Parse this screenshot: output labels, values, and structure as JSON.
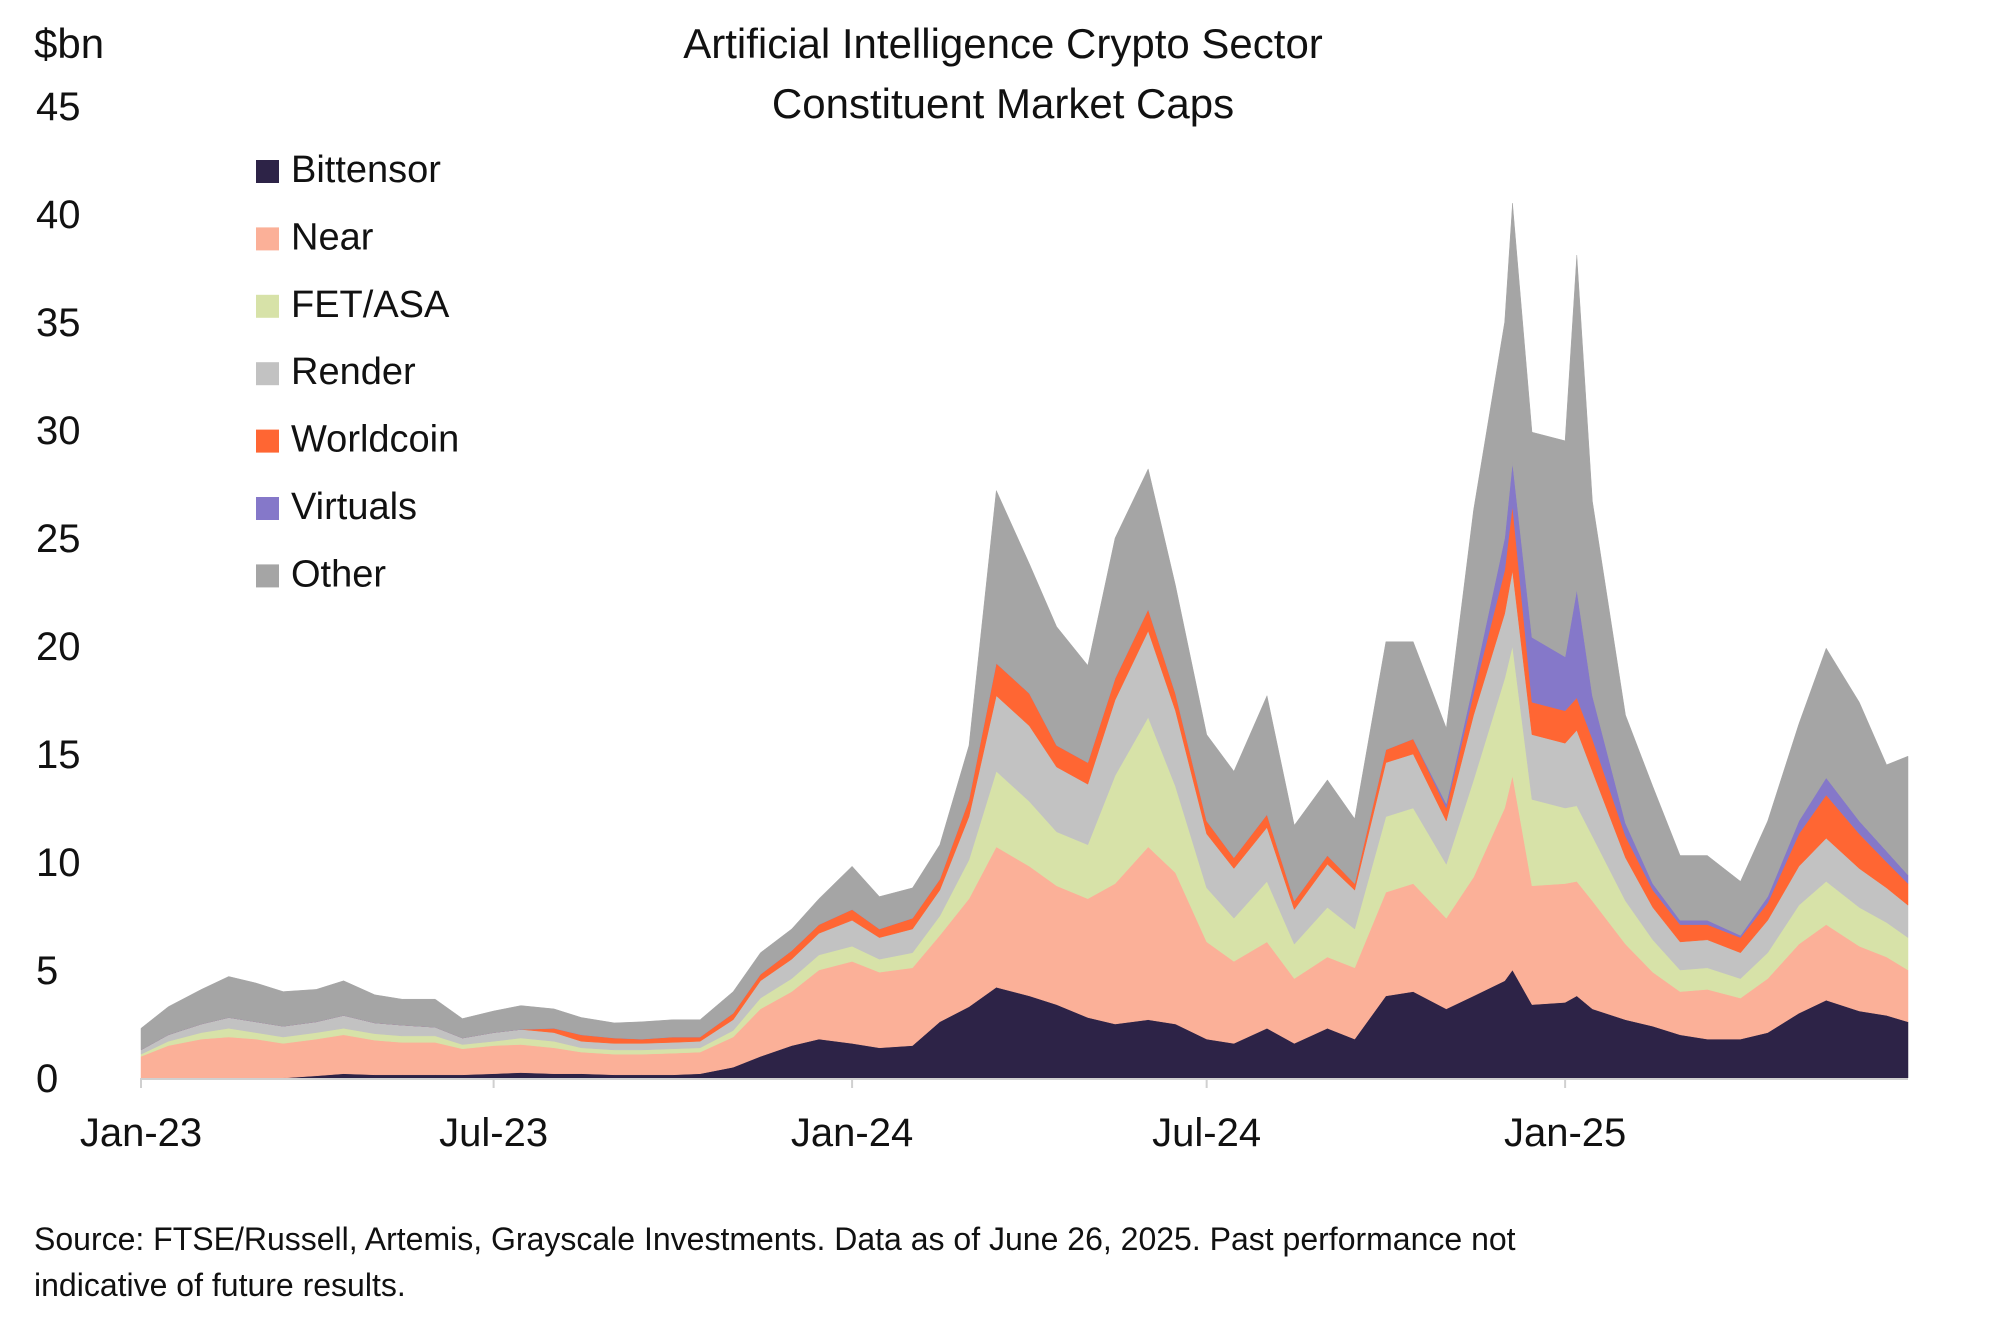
{
  "chart_data": {
    "type": "area",
    "stacked": true,
    "title": "Artificial Intelligence Crypto Sector",
    "subtitle": "Constituent Market Caps",
    "ylabel": "$bn",
    "xlabel": "",
    "ylim": [
      0,
      45
    ],
    "yticks": [
      0,
      5,
      10,
      15,
      20,
      25,
      30,
      35,
      40,
      45
    ],
    "xticks": [
      {
        "date": "2023-01-01",
        "label": "Jan-23"
      },
      {
        "date": "2023-07-01",
        "label": "Jul-23"
      },
      {
        "date": "2024-01-01",
        "label": "Jan-24"
      },
      {
        "date": "2024-07-01",
        "label": "Jul-24"
      },
      {
        "date": "2025-01-01",
        "label": "Jan-25"
      }
    ],
    "xlim": [
      "2023-01-01",
      "2025-06-26"
    ],
    "grid": false,
    "legend_position": "top-left",
    "x": [
      "2023-01-01",
      "2023-01-15",
      "2023-02-01",
      "2023-02-15",
      "2023-03-01",
      "2023-03-15",
      "2023-04-01",
      "2023-04-15",
      "2023-05-01",
      "2023-05-15",
      "2023-06-01",
      "2023-06-15",
      "2023-07-01",
      "2023-07-15",
      "2023-08-01",
      "2023-08-15",
      "2023-09-01",
      "2023-09-15",
      "2023-10-01",
      "2023-10-15",
      "2023-11-01",
      "2023-11-15",
      "2023-12-01",
      "2023-12-15",
      "2024-01-01",
      "2024-01-15",
      "2024-02-01",
      "2024-02-15",
      "2024-03-01",
      "2024-03-15",
      "2024-04-01",
      "2024-04-15",
      "2024-05-01",
      "2024-05-15",
      "2024-06-01",
      "2024-06-15",
      "2024-07-01",
      "2024-07-15",
      "2024-08-01",
      "2024-08-15",
      "2024-09-01",
      "2024-09-15",
      "2024-10-01",
      "2024-10-15",
      "2024-11-01",
      "2024-11-15",
      "2024-12-01",
      "2024-12-05",
      "2024-12-15",
      "2025-01-01",
      "2025-01-07",
      "2025-01-15",
      "2025-02-01",
      "2025-02-15",
      "2025-03-01",
      "2025-03-15",
      "2025-04-01",
      "2025-04-15",
      "2025-05-01",
      "2025-05-15",
      "2025-06-01",
      "2025-06-15",
      "2025-06-26"
    ],
    "series": [
      {
        "name": "Bittensor",
        "color": "#2d2347",
        "values": [
          0,
          0,
          0,
          0,
          0,
          0,
          0.1,
          0.2,
          0.15,
          0.15,
          0.15,
          0.15,
          0.2,
          0.25,
          0.2,
          0.2,
          0.15,
          0.15,
          0.15,
          0.2,
          0.5,
          1.0,
          1.5,
          1.8,
          1.6,
          1.4,
          1.5,
          2.6,
          3.3,
          4.2,
          3.8,
          3.4,
          2.8,
          2.5,
          2.7,
          2.5,
          1.8,
          1.6,
          2.3,
          1.6,
          2.3,
          1.8,
          3.8,
          4.0,
          3.2,
          3.8,
          4.5,
          5.0,
          3.4,
          3.5,
          3.8,
          3.2,
          2.7,
          2.4,
          2.0,
          1.8,
          1.8,
          2.1,
          3.0,
          3.6,
          3.1,
          2.9,
          2.6
        ]
      },
      {
        "name": "Near",
        "color": "#fbb098",
        "values": [
          1.0,
          1.5,
          1.8,
          1.9,
          1.8,
          1.6,
          1.7,
          1.8,
          1.6,
          1.5,
          1.5,
          1.2,
          1.3,
          1.3,
          1.2,
          1.0,
          0.95,
          0.95,
          1.0,
          1.0,
          1.4,
          2.2,
          2.5,
          3.2,
          3.8,
          3.5,
          3.6,
          4.0,
          5.0,
          6.5,
          6.0,
          5.5,
          5.5,
          6.5,
          8.0,
          7.0,
          4.5,
          3.8,
          4.0,
          3.0,
          3.3,
          3.3,
          4.8,
          5.0,
          4.2,
          5.5,
          8.0,
          9.0,
          5.5,
          5.5,
          5.3,
          5.0,
          3.5,
          2.5,
          2.0,
          2.3,
          1.9,
          2.5,
          3.2,
          3.5,
          3.0,
          2.7,
          2.4
        ]
      },
      {
        "name": "FET/ASA",
        "color": "#d7e2a8",
        "values": [
          0.1,
          0.2,
          0.3,
          0.4,
          0.3,
          0.3,
          0.3,
          0.3,
          0.3,
          0.3,
          0.3,
          0.2,
          0.2,
          0.3,
          0.3,
          0.2,
          0.2,
          0.2,
          0.2,
          0.2,
          0.3,
          0.5,
          0.6,
          0.7,
          0.7,
          0.6,
          0.7,
          0.9,
          1.8,
          3.5,
          3.0,
          2.5,
          2.5,
          5.0,
          6.0,
          4.0,
          2.5,
          2.0,
          2.8,
          1.6,
          2.3,
          1.8,
          3.5,
          3.5,
          2.5,
          4.5,
          6.0,
          6.0,
          4.0,
          3.5,
          3.5,
          3.0,
          2.0,
          1.5,
          1.0,
          1.0,
          0.9,
          1.2,
          1.8,
          2.0,
          1.8,
          1.6,
          1.5
        ]
      },
      {
        "name": "Render",
        "color": "#c2c2c2",
        "values": [
          0.2,
          0.3,
          0.4,
          0.5,
          0.5,
          0.5,
          0.5,
          0.6,
          0.5,
          0.5,
          0.4,
          0.3,
          0.4,
          0.4,
          0.4,
          0.3,
          0.3,
          0.3,
          0.3,
          0.3,
          0.5,
          0.8,
          0.9,
          1.0,
          1.2,
          1.0,
          1.1,
          1.2,
          2.0,
          3.5,
          3.5,
          3.0,
          2.8,
          3.5,
          4.0,
          3.5,
          2.5,
          2.3,
          2.5,
          1.6,
          2.0,
          1.8,
          2.5,
          2.5,
          2.0,
          3.0,
          3.0,
          3.5,
          3.0,
          3.0,
          3.5,
          3.0,
          2.0,
          1.5,
          1.3,
          1.3,
          1.2,
          1.5,
          1.8,
          2.0,
          1.8,
          1.6,
          1.5
        ]
      },
      {
        "name": "Worldcoin",
        "color": "#ff6633",
        "values": [
          0,
          0,
          0,
          0,
          0,
          0,
          0,
          0,
          0,
          0,
          0,
          0,
          0,
          0,
          0.2,
          0.3,
          0.25,
          0.2,
          0.25,
          0.2,
          0.3,
          0.3,
          0.4,
          0.4,
          0.5,
          0.4,
          0.5,
          0.5,
          0.8,
          1.5,
          1.5,
          1.0,
          1.0,
          1.0,
          1.0,
          0.8,
          0.6,
          0.5,
          0.6,
          0.4,
          0.4,
          0.3,
          0.6,
          0.7,
          0.6,
          1.0,
          2.0,
          3.0,
          1.5,
          1.5,
          1.5,
          1.5,
          1.0,
          0.8,
          0.8,
          0.7,
          0.7,
          0.8,
          1.5,
          2.0,
          1.6,
          1.2,
          1.0
        ]
      },
      {
        "name": "Virtuals",
        "color": "#8578c9",
        "values": [
          0,
          0,
          0,
          0,
          0,
          0,
          0,
          0,
          0,
          0,
          0,
          0,
          0,
          0,
          0,
          0,
          0,
          0,
          0,
          0,
          0,
          0,
          0,
          0,
          0,
          0,
          0,
          0,
          0,
          0,
          0,
          0,
          0,
          0,
          0,
          0,
          0,
          0,
          0,
          0,
          0,
          0,
          0,
          0,
          0.2,
          0.5,
          1.5,
          2.0,
          3.0,
          2.5,
          5.0,
          2.0,
          0.6,
          0.3,
          0.2,
          0.2,
          0.1,
          0.3,
          0.6,
          0.8,
          0.6,
          0.5,
          0.4
        ]
      },
      {
        "name": "Other",
        "color": "#a5a5a5",
        "values": [
          1.0,
          1.3,
          1.6,
          1.9,
          1.8,
          1.6,
          1.5,
          1.6,
          1.3,
          1.2,
          1.3,
          0.9,
          1.0,
          1.1,
          0.9,
          0.8,
          0.7,
          0.8,
          0.8,
          0.8,
          1.0,
          1.0,
          1.0,
          1.2,
          2.0,
          1.5,
          1.4,
          1.6,
          2.5,
          8.0,
          6.0,
          5.5,
          4.5,
          6.5,
          6.5,
          5.0,
          4.0,
          4.0,
          5.5,
          3.5,
          3.5,
          3.0,
          5.0,
          4.5,
          3.5,
          8.0,
          10.0,
          12.0,
          9.5,
          10.0,
          15.5,
          9.0,
          5.0,
          4.5,
          3.0,
          3.0,
          2.5,
          3.5,
          4.5,
          6.0,
          5.5,
          4.0,
          5.5
        ]
      }
    ]
  },
  "footer": {
    "source_line1": "Source: FTSE/Russell, Artemis, Grayscale Investments. Data as of June 26, 2025. Past performance not",
    "source_line2": "indicative of future results."
  }
}
